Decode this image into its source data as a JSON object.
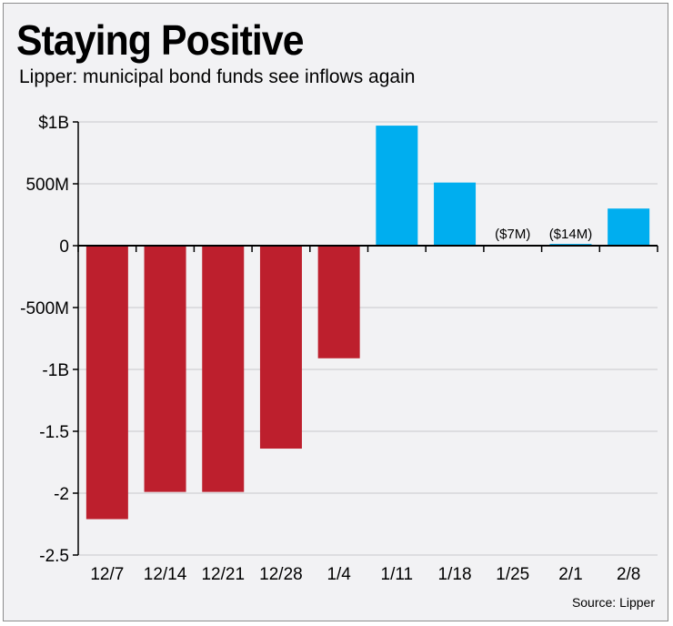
{
  "chart_data": {
    "type": "bar",
    "title": "Staying Positive",
    "subtitle": "Lipper: municipal bond funds see inflows again",
    "xlabel": "",
    "ylabel": "",
    "categories": [
      "12/7",
      "12/14",
      "12/21",
      "12/28",
      "1/4",
      "1/11",
      "1/18",
      "1/25",
      "2/1",
      "2/8"
    ],
    "values": [
      -2.21,
      -1.99,
      -1.99,
      -1.64,
      -0.91,
      0.97,
      0.51,
      0.007,
      0.014,
      0.3
    ],
    "data_labels": [
      "",
      "",
      "",
      "",
      "",
      "",
      "",
      "($7M)",
      "($14M)",
      ""
    ],
    "ylim": [
      -2.5,
      1.0
    ],
    "yticks": [
      1.0,
      0.5,
      0,
      -0.5,
      -1.0,
      -1.5,
      -2.0,
      -2.5
    ],
    "ytick_labels": [
      "$1B",
      "500M",
      "0",
      "-500M",
      "-1B",
      "-1.5",
      "-2",
      "-2.5"
    ],
    "grid": true,
    "colors": {
      "negative": "#bd1f2d",
      "positive": "#00aeef"
    },
    "source": "Source: Lipper"
  }
}
